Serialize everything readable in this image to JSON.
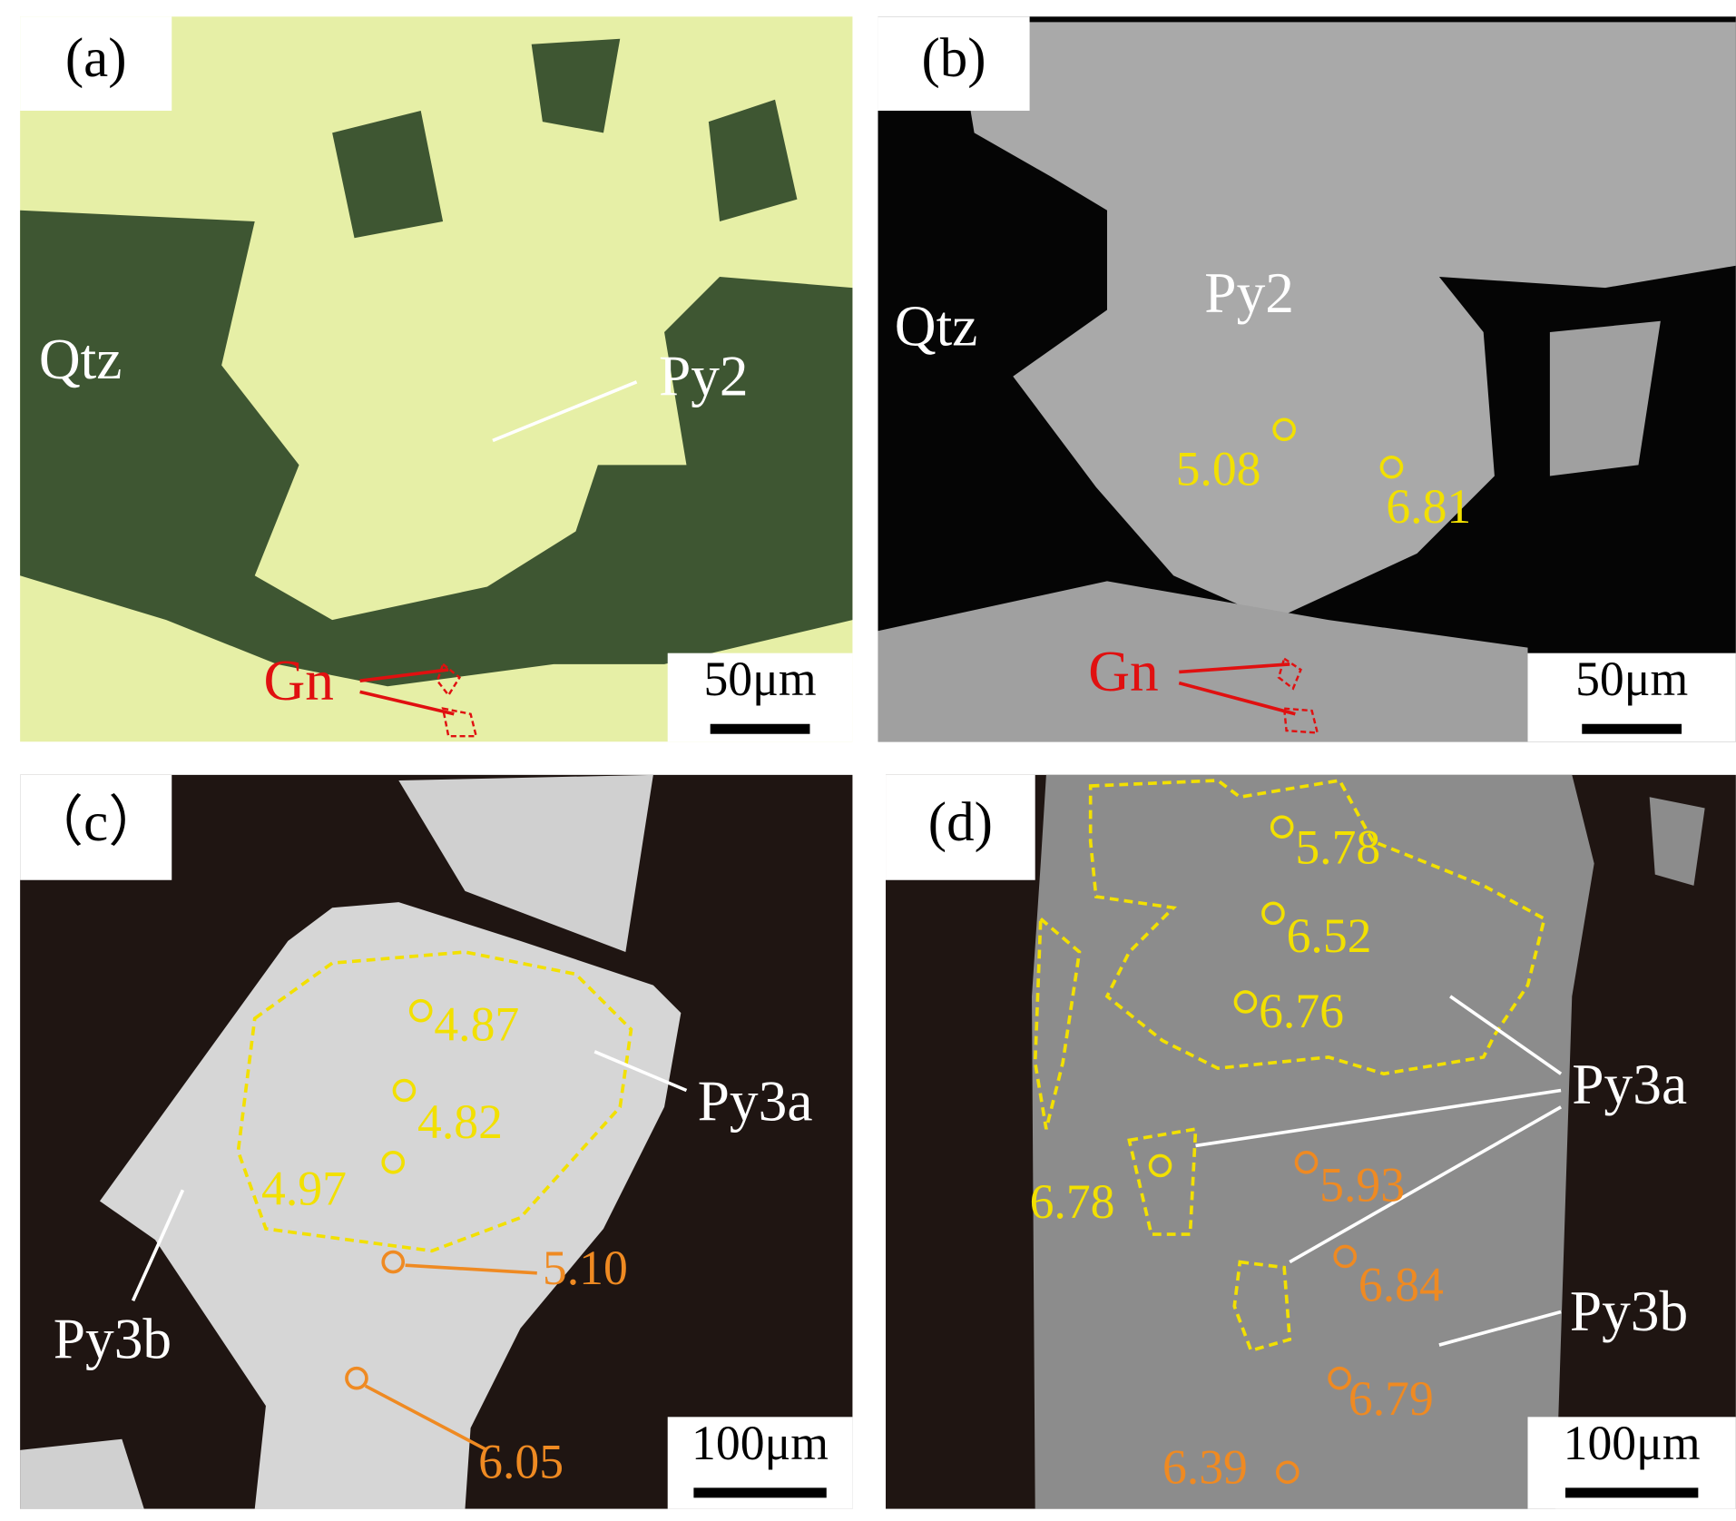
{
  "panels": [
    {
      "label": "(a)",
      "labels": [
        "Qtz",
        "Py2",
        "Gn"
      ],
      "scale_bar": "50μm"
    },
    {
      "label": "(b)",
      "labels": [
        "Qtz",
        "Py2",
        "Gn"
      ],
      "spots": [
        "5.08",
        "6.81"
      ],
      "scale_bar": "50μm"
    },
    {
      "label": "（c）",
      "labels": [
        "Py3a",
        "Py3b"
      ],
      "spots": [
        "4.87",
        "4.82",
        "4.97",
        "5.10",
        "6.05"
      ],
      "scale_bar": "100μm"
    },
    {
      "label": "(d)",
      "labels": [
        "Py3a",
        "Py3b"
      ],
      "spots": [
        "5.78",
        "6.52",
        "6.76",
        "6.78",
        "5.93",
        "6.84",
        "6.79",
        "6.39"
      ],
      "scale_bar": "100μm"
    }
  ]
}
